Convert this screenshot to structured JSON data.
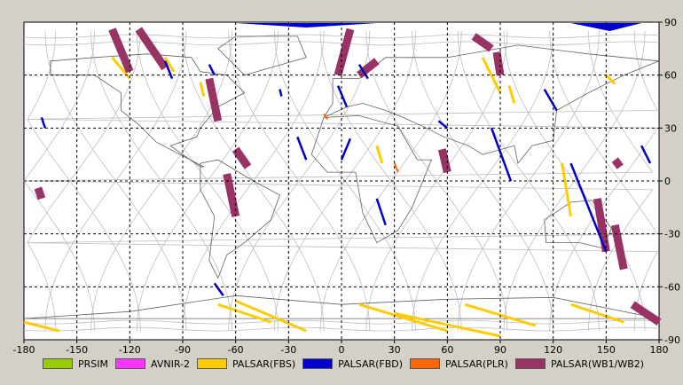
{
  "map": {
    "x_axis": {
      "ticks": [
        -180,
        -150,
        -120,
        -90,
        -60,
        -30,
        0,
        30,
        60,
        90,
        120,
        150,
        180
      ]
    },
    "y_axis": {
      "ticks": [
        90,
        60,
        30,
        0,
        -30,
        -60,
        -90
      ]
    },
    "colors": {
      "PRSIM": "#99cc00",
      "AVNIR-2": "#ff33ff",
      "PALSAR(FBS)": "#ffcc00",
      "PALSAR(FBD)": "#0000cc",
      "PALSAR(PLR)": "#ff6600",
      "PALSAR(WB1/WB2)": "#993366"
    }
  },
  "legend": {
    "items": [
      {
        "label": "PRSIM",
        "color": "#99cc00"
      },
      {
        "label": "AVNIR-2",
        "color": "#ff33ff"
      },
      {
        "label": "PALSAR(FBS)",
        "color": "#ffcc00"
      },
      {
        "label": "PALSAR(FBD)",
        "color": "#0000cc"
      },
      {
        "label": "PALSAR(PLR)",
        "color": "#ff6600"
      },
      {
        "label": "PALSAR(WB1/WB2)",
        "color": "#993366"
      }
    ]
  },
  "footprints": {
    "wb": [
      [
        -130,
        86,
        -120,
        62
      ],
      [
        -115,
        86,
        -100,
        64
      ],
      [
        -75,
        58,
        -70,
        34
      ],
      [
        -60,
        18,
        -53,
        8
      ],
      [
        -65,
        4,
        -60,
        -20
      ],
      [
        5,
        86,
        -2,
        60
      ],
      [
        10,
        60,
        20,
        68
      ],
      [
        75,
        82,
        85,
        75
      ],
      [
        88,
        73,
        90,
        60
      ],
      [
        57,
        18,
        60,
        5
      ],
      [
        145,
        -10,
        150,
        -40
      ],
      [
        155,
        -25,
        160,
        -50
      ],
      [
        165,
        -70,
        180,
        -80
      ],
      [
        -172,
        -4,
        -170,
        -10
      ],
      [
        155,
        12,
        158,
        8
      ]
    ],
    "fbd": [
      [
        -100,
        68,
        -96,
        58
      ],
      [
        -75,
        66,
        -72,
        60
      ],
      [
        -35,
        52,
        -34,
        48
      ],
      [
        -2,
        54,
        3,
        42
      ],
      [
        10,
        66,
        15,
        58
      ],
      [
        5,
        24,
        0,
        12
      ],
      [
        130,
        10,
        150,
        -40
      ],
      [
        85,
        30,
        96,
        0
      ],
      [
        115,
        52,
        122,
        40
      ],
      [
        -25,
        25,
        -20,
        12
      ],
      [
        -72,
        -58,
        -67,
        -65
      ],
      [
        20,
        -10,
        25,
        -25
      ],
      [
        55,
        34,
        60,
        30
      ],
      [
        170,
        20,
        175,
        10
      ],
      [
        -170,
        36,
        -168,
        30
      ]
    ],
    "fbs": [
      [
        -130,
        70,
        -120,
        58
      ],
      [
        -100,
        70,
        -95,
        62
      ],
      [
        -80,
        56,
        -78,
        48
      ],
      [
        80,
        70,
        90,
        50
      ],
      [
        95,
        54,
        98,
        44
      ],
      [
        125,
        10,
        130,
        -20
      ],
      [
        -60,
        -68,
        -20,
        -85
      ],
      [
        -70,
        -70,
        -40,
        -80
      ],
      [
        10,
        -70,
        60,
        -85
      ],
      [
        30,
        -75,
        90,
        -88
      ],
      [
        70,
        -70,
        110,
        -82
      ],
      [
        130,
        -70,
        160,
        -80
      ],
      [
        -180,
        -80,
        -160,
        -85
      ],
      [
        20,
        20,
        23,
        10
      ],
      [
        150,
        60,
        155,
        55
      ]
    ],
    "plr": [
      [
        -10,
        38,
        -8,
        35
      ],
      [
        30,
        10,
        32,
        5
      ]
    ]
  }
}
